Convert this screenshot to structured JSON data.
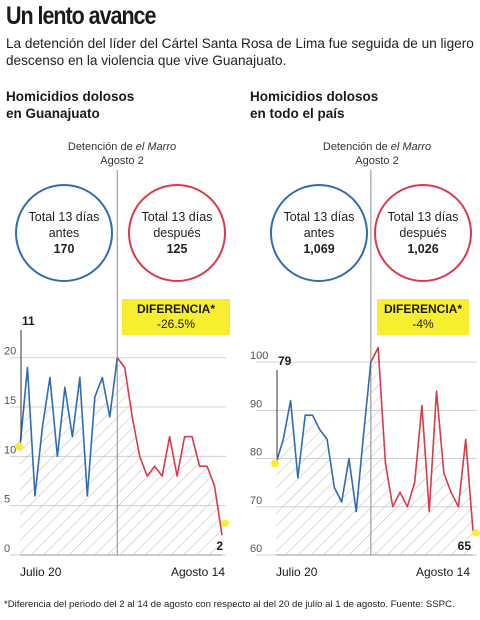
{
  "header": {
    "title": "Un lento avance",
    "subtitle": "La detención del líder del Cártel Santa Rosa de Lima fue seguida de un ligero descenso en la violencia que vive Guanajuato."
  },
  "event": {
    "pre": "Detención de ",
    "name": "el Marro",
    "date": "Agosto 2"
  },
  "footnote": "*Diferencia del periodo del 2 al 14 de agosto con respecto al del 20 de julio al 1 de agosto. Fuente: SSPC.",
  "colors": {
    "before": "#2f6db0",
    "after": "#d93a4a",
    "highlight": "#f7ef2e"
  },
  "chart_data": [
    {
      "type": "line",
      "title_line1": "Homicidios dolosos",
      "title_line2": "en Guanajuato",
      "categories_first": "Julio 20",
      "categories_last": "Agosto 14",
      "ylim": [
        0,
        22
      ],
      "yticks": [
        "0",
        "5",
        "10",
        "15",
        "20"
      ],
      "series": [
        {
          "values": [
            11,
            19,
            6,
            13,
            18,
            10,
            17,
            12,
            18,
            6,
            16,
            18,
            14,
            20
          ]
        },
        {
          "values": [
            20,
            19,
            14,
            10,
            8,
            9,
            8,
            12,
            8,
            12,
            12,
            9,
            9,
            7,
            2
          ]
        }
      ],
      "start_label": "11",
      "end_label": "2",
      "circle_before": {
        "line1": "Total 13 días",
        "line2": "antes",
        "value": "170"
      },
      "circle_after": {
        "line1": "Total 13 días",
        "line2": "después",
        "value": "125"
      },
      "diff_label": "DIFERENCIA*",
      "diff_value": "-26.5%"
    },
    {
      "type": "line",
      "title_line1": "Homicidios dolosos",
      "title_line2": "en todo el país",
      "categories_first": "Julio 20",
      "categories_last": "Agosto 14",
      "ylim": [
        60,
        105
      ],
      "yticks": [
        "60",
        "70",
        "80",
        "90",
        "100"
      ],
      "series": [
        {
          "values": [
            79,
            84,
            92,
            76,
            89,
            89,
            86,
            84,
            74,
            71,
            80,
            69,
            85,
            100
          ]
        },
        {
          "values": [
            100,
            103,
            79,
            70,
            73,
            70,
            75,
            91,
            69,
            94,
            77,
            73,
            70,
            84,
            65
          ]
        }
      ],
      "start_label": "79",
      "end_label": "65",
      "circle_before": {
        "line1": "Total 13 días",
        "line2": "antes",
        "value": "1,069"
      },
      "circle_after": {
        "line1": "Total 13 días",
        "line2": "después",
        "value": "1,026"
      },
      "diff_label": "DIFERENCIA*",
      "diff_value": "-4%"
    }
  ]
}
